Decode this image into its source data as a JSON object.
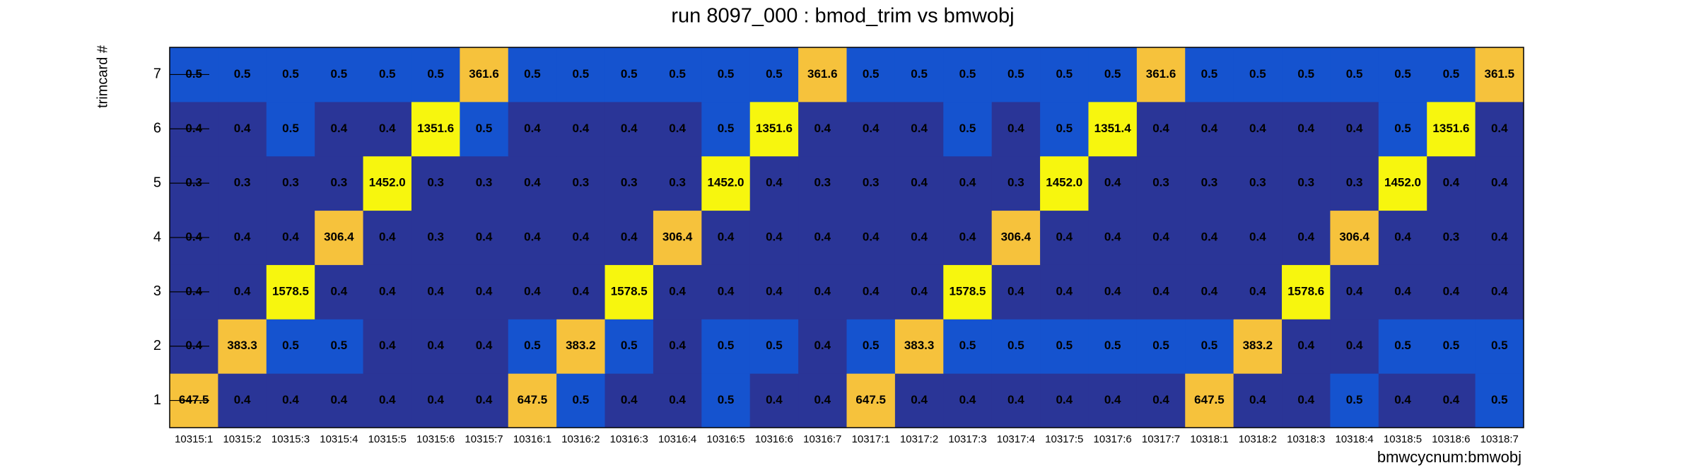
{
  "chart_data": {
    "type": "heatmap",
    "title": "run 8097_000 : bmod_trim vs bmwobj",
    "x_label": "bmwcycnum:bmwobj",
    "y_label": "trimcard #",
    "categories": [
      "10315:1",
      "10315:2",
      "10315:3",
      "10315:4",
      "10315:5",
      "10315:6",
      "10315:7",
      "10316:1",
      "10316:2",
      "10316:3",
      "10316:4",
      "10316:5",
      "10316:6",
      "10316:7",
      "10317:1",
      "10317:2",
      "10317:3",
      "10317:4",
      "10317:5",
      "10317:6",
      "10317:7",
      "10318:1",
      "10318:2",
      "10318:3",
      "10318:4",
      "10318:5",
      "10318:6",
      "10318:7"
    ],
    "y": [
      1,
      2,
      3,
      4,
      5,
      6,
      7
    ],
    "values": [
      [
        647.5,
        0.4,
        0.4,
        0.4,
        0.4,
        0.4,
        0.4,
        647.5,
        0.5,
        0.4,
        0.4,
        0.5,
        0.4,
        0.4,
        647.5,
        0.4,
        0.4,
        0.4,
        0.4,
        0.4,
        0.4,
        647.5,
        0.4,
        0.4,
        0.5,
        0.4,
        0.4,
        0.5
      ],
      [
        0.4,
        383.3,
        0.5,
        0.5,
        0.4,
        0.4,
        0.4,
        0.5,
        383.2,
        0.5,
        0.4,
        0.5,
        0.5,
        0.4,
        0.5,
        383.3,
        0.5,
        0.5,
        0.5,
        0.5,
        0.5,
        0.5,
        383.2,
        0.4,
        0.4,
        0.5,
        0.5,
        0.5
      ],
      [
        0.4,
        0.4,
        1578.5,
        0.4,
        0.4,
        0.4,
        0.4,
        0.4,
        0.4,
        1578.5,
        0.4,
        0.4,
        0.4,
        0.4,
        0.4,
        0.4,
        1578.5,
        0.4,
        0.4,
        0.4,
        0.4,
        0.4,
        0.4,
        1578.6,
        0.4,
        0.4,
        0.4,
        0.4
      ],
      [
        0.4,
        0.4,
        0.4,
        306.4,
        0.4,
        0.3,
        0.4,
        0.4,
        0.4,
        0.4,
        306.4,
        0.4,
        0.4,
        0.4,
        0.4,
        0.4,
        0.4,
        306.4,
        0.4,
        0.4,
        0.4,
        0.4,
        0.4,
        0.4,
        306.4,
        0.4,
        0.3,
        0.4
      ],
      [
        0.3,
        0.3,
        0.3,
        0.3,
        1452.0,
        0.3,
        0.3,
        0.4,
        0.3,
        0.3,
        0.3,
        1452.0,
        0.4,
        0.3,
        0.3,
        0.4,
        0.4,
        0.3,
        1452.0,
        0.4,
        0.3,
        0.3,
        0.3,
        0.3,
        0.3,
        1452.0,
        0.4,
        0.4
      ],
      [
        0.4,
        0.4,
        0.5,
        0.4,
        0.4,
        1351.6,
        0.5,
        0.4,
        0.4,
        0.4,
        0.4,
        0.5,
        1351.6,
        0.4,
        0.4,
        0.4,
        0.5,
        0.4,
        0.5,
        1351.4,
        0.4,
        0.4,
        0.4,
        0.4,
        0.4,
        0.5,
        1351.6,
        0.4
      ],
      [
        0.5,
        0.5,
        0.5,
        0.5,
        0.5,
        0.5,
        361.6,
        0.5,
        0.5,
        0.5,
        0.5,
        0.5,
        0.5,
        361.6,
        0.5,
        0.5,
        0.5,
        0.5,
        0.5,
        0.5,
        361.6,
        0.5,
        0.5,
        0.5,
        0.5,
        0.5,
        0.5,
        361.5
      ]
    ],
    "value_labels": [
      [
        "647.5",
        "0.4",
        "0.4",
        "0.4",
        "0.4",
        "0.4",
        "0.4",
        "647.5",
        "0.5",
        "0.4",
        "0.4",
        "0.5",
        "0.4",
        "0.4",
        "647.5",
        "0.4",
        "0.4",
        "0.4",
        "0.4",
        "0.4",
        "0.4",
        "647.5",
        "0.4",
        "0.4",
        "0.5",
        "0.4",
        "0.4",
        "0.5"
      ],
      [
        "0.4",
        "383.3",
        "0.5",
        "0.5",
        "0.4",
        "0.4",
        "0.4",
        "0.5",
        "383.2",
        "0.5",
        "0.4",
        "0.5",
        "0.5",
        "0.4",
        "0.5",
        "383.3",
        "0.5",
        "0.5",
        "0.5",
        "0.5",
        "0.5",
        "0.5",
        "383.2",
        "0.4",
        "0.4",
        "0.5",
        "0.5",
        "0.5"
      ],
      [
        "0.4",
        "0.4",
        "1578.5",
        "0.4",
        "0.4",
        "0.4",
        "0.4",
        "0.4",
        "0.4",
        "1578.5",
        "0.4",
        "0.4",
        "0.4",
        "0.4",
        "0.4",
        "0.4",
        "1578.5",
        "0.4",
        "0.4",
        "0.4",
        "0.4",
        "0.4",
        "0.4",
        "1578.6",
        "0.4",
        "0.4",
        "0.4",
        "0.4"
      ],
      [
        "0.4",
        "0.4",
        "0.4",
        "306.4",
        "0.4",
        "0.3",
        "0.4",
        "0.4",
        "0.4",
        "0.4",
        "306.4",
        "0.4",
        "0.4",
        "0.4",
        "0.4",
        "0.4",
        "0.4",
        "306.4",
        "0.4",
        "0.4",
        "0.4",
        "0.4",
        "0.4",
        "0.4",
        "306.4",
        "0.4",
        "0.3",
        "0.4"
      ],
      [
        "0.3",
        "0.3",
        "0.3",
        "0.3",
        "1452.0",
        "0.3",
        "0.3",
        "0.4",
        "0.3",
        "0.3",
        "0.3",
        "1452.0",
        "0.4",
        "0.3",
        "0.3",
        "0.4",
        "0.4",
        "0.3",
        "1452.0",
        "0.4",
        "0.3",
        "0.3",
        "0.3",
        "0.3",
        "0.3",
        "1452.0",
        "0.4",
        "0.4"
      ],
      [
        "0.4",
        "0.4",
        "0.5",
        "0.4",
        "0.4",
        "1351.6",
        "0.5",
        "0.4",
        "0.4",
        "0.4",
        "0.4",
        "0.5",
        "1351.6",
        "0.4",
        "0.4",
        "0.4",
        "0.5",
        "0.4",
        "0.5",
        "1351.4",
        "0.4",
        "0.4",
        "0.4",
        "0.4",
        "0.4",
        "0.5",
        "1351.6",
        "0.4"
      ],
      [
        "0.5",
        "0.5",
        "0.5",
        "0.5",
        "0.5",
        "0.5",
        "361.6",
        "0.5",
        "0.5",
        "0.5",
        "0.5",
        "0.5",
        "0.5",
        "361.6",
        "0.5",
        "0.5",
        "0.5",
        "0.5",
        "0.5",
        "0.5",
        "361.6",
        "0.5",
        "0.5",
        "0.5",
        "0.5",
        "0.5",
        "0.5",
        "361.5"
      ]
    ],
    "colors": {
      "low": "#2a3597",
      "mid": "#1553cf",
      "high": "#f6c23c",
      "peak": "#f7f60e"
    }
  }
}
